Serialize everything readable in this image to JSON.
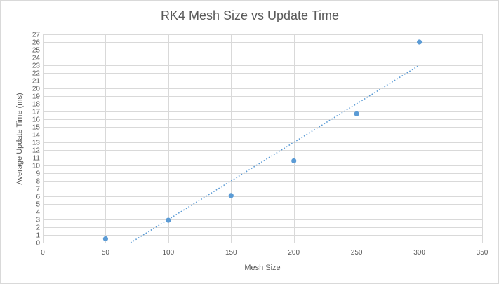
{
  "chart_data": {
    "type": "scatter",
    "title": "RK4 Mesh Size vs Update Time",
    "xlabel": "Mesh Size",
    "ylabel": "Average Update Time (ms)",
    "xlim": [
      0,
      350
    ],
    "ylim": [
      0,
      27
    ],
    "x_ticks": [
      "0",
      "50",
      "100",
      "150",
      "200",
      "250",
      "300",
      "350"
    ],
    "y_ticks": [
      "0",
      "1",
      "2",
      "3",
      "4",
      "5",
      "6",
      "7",
      "8",
      "9",
      "10",
      "11",
      "12",
      "13",
      "14",
      "15",
      "16",
      "17",
      "18",
      "19",
      "20",
      "21",
      "22",
      "23",
      "24",
      "25",
      "26",
      "27"
    ],
    "grid": true,
    "legend": "none",
    "series": [
      {
        "x": [
          50,
          100,
          150,
          200,
          250,
          300
        ],
        "y": [
          0.5,
          2.9,
          6.1,
          10.6,
          16.7,
          26.0
        ]
      }
    ],
    "trendline": {
      "type": "linear",
      "x_range": [
        70,
        300
      ],
      "slope": 0.1,
      "intercept": -7.0
    },
    "colors": {
      "marker": "#5b9bd5",
      "trendline": "#5b9bd5",
      "grid": "#d9d9d9",
      "text": "#595959"
    }
  }
}
